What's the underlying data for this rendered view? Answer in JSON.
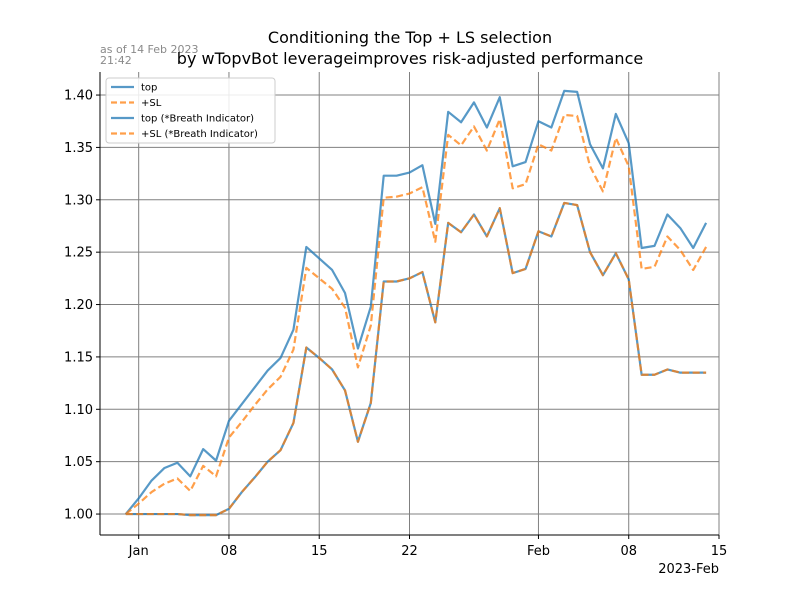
{
  "timestamp": {
    "line1": "as of 14 Feb 2023",
    "line2": "21:42"
  },
  "chart_data": {
    "type": "line",
    "title": "Conditioning the Top + LS selection",
    "subtitle": "by wTopvBot leverageimproves risk-adjusted performance",
    "xlabel": "",
    "ylabel": "",
    "x_offset_label": "2023-Feb",
    "xlim": [
      "2022-12-29",
      "2023-02-15"
    ],
    "ylim": [
      0.98,
      1.422
    ],
    "grid": true,
    "legend_position": "top-left",
    "x_ticks": [
      {
        "date": "2023-01-01",
        "label": "Jan"
      },
      {
        "date": "2023-01-08",
        "label": "08"
      },
      {
        "date": "2023-01-15",
        "label": "15"
      },
      {
        "date": "2023-01-22",
        "label": "22"
      },
      {
        "date": "2023-02-01",
        "label": "Feb"
      },
      {
        "date": "2023-02-08",
        "label": "08"
      },
      {
        "date": "2023-02-15",
        "label": "15"
      }
    ],
    "y_ticks": [
      {
        "value": 1.0,
        "label": "1.00"
      },
      {
        "value": 1.05,
        "label": "1.05"
      },
      {
        "value": 1.1,
        "label": "1.10"
      },
      {
        "value": 1.15,
        "label": "1.15"
      },
      {
        "value": 1.2,
        "label": "1.20"
      },
      {
        "value": 1.25,
        "label": "1.25"
      },
      {
        "value": 1.3,
        "label": "1.30"
      },
      {
        "value": 1.35,
        "label": "1.35"
      },
      {
        "value": 1.4,
        "label": "1.40"
      }
    ],
    "x": [
      "2022-12-31",
      "2023-01-01",
      "2023-01-02",
      "2023-01-03",
      "2023-01-04",
      "2023-01-05",
      "2023-01-06",
      "2023-01-07",
      "2023-01-08",
      "2023-01-09",
      "2023-01-10",
      "2023-01-11",
      "2023-01-12",
      "2023-01-13",
      "2023-01-14",
      "2023-01-15",
      "2023-01-16",
      "2023-01-17",
      "2023-01-18",
      "2023-01-19",
      "2023-01-20",
      "2023-01-21",
      "2023-01-22",
      "2023-01-23",
      "2023-01-24",
      "2023-01-25",
      "2023-01-26",
      "2023-01-27",
      "2023-01-28",
      "2023-01-29",
      "2023-01-30",
      "2023-01-31",
      "2023-02-01",
      "2023-02-02",
      "2023-02-03",
      "2023-02-04",
      "2023-02-05",
      "2023-02-06",
      "2023-02-07",
      "2023-02-08",
      "2023-02-09",
      "2023-02-10",
      "2023-02-11",
      "2023-02-12",
      "2023-02-13",
      "2023-02-14"
    ],
    "series": [
      {
        "name": "top",
        "color": "#1f77b4",
        "dash": "solid",
        "values": [
          1.0,
          1.015,
          1.032,
          1.044,
          1.049,
          1.036,
          1.062,
          1.051,
          1.089,
          1.105,
          1.121,
          1.137,
          1.149,
          1.176,
          1.255,
          1.244,
          1.233,
          1.211,
          1.158,
          1.198,
          1.323,
          1.323,
          1.326,
          1.333,
          1.277,
          1.384,
          1.374,
          1.393,
          1.369,
          1.398,
          1.332,
          1.336,
          1.375,
          1.369,
          1.404,
          1.403,
          1.353,
          1.33,
          1.382,
          1.354,
          1.254,
          1.256,
          1.286,
          1.273,
          1.254,
          1.278
        ]
      },
      {
        "name": "+SL",
        "color": "#ff7f0e",
        "dash": "dashed",
        "values": [
          1.0,
          1.01,
          1.021,
          1.029,
          1.034,
          1.022,
          1.046,
          1.036,
          1.073,
          1.088,
          1.104,
          1.119,
          1.131,
          1.157,
          1.235,
          1.225,
          1.215,
          1.197,
          1.14,
          1.18,
          1.302,
          1.303,
          1.306,
          1.312,
          1.26,
          1.362,
          1.352,
          1.37,
          1.347,
          1.377,
          1.311,
          1.315,
          1.353,
          1.347,
          1.381,
          1.38,
          1.332,
          1.308,
          1.359,
          1.332,
          1.234,
          1.236,
          1.265,
          1.252,
          1.233,
          1.255
        ]
      },
      {
        "name": "top (*Breath Indicator)",
        "color": "#1f77b4",
        "dash": "solid",
        "values": [
          1.0,
          1.0,
          1.0,
          1.0,
          1.0,
          0.999,
          0.999,
          0.999,
          1.005,
          1.021,
          1.035,
          1.05,
          1.061,
          1.087,
          1.159,
          1.149,
          1.138,
          1.118,
          1.069,
          1.106,
          1.222,
          1.222,
          1.225,
          1.231,
          1.183,
          1.278,
          1.269,
          1.286,
          1.265,
          1.292,
          1.23,
          1.234,
          1.27,
          1.265,
          1.297,
          1.295,
          1.25,
          1.228,
          1.249,
          1.224,
          1.133,
          1.133,
          1.138,
          1.135,
          1.135,
          1.135
        ]
      },
      {
        "name": "+SL (*Breath Indicator)",
        "color": "#ff7f0e",
        "dash": "dashed",
        "values": [
          1.0,
          1.0,
          1.0,
          1.0,
          1.0,
          0.999,
          0.999,
          0.999,
          1.005,
          1.021,
          1.035,
          1.05,
          1.061,
          1.087,
          1.159,
          1.149,
          1.138,
          1.118,
          1.069,
          1.106,
          1.222,
          1.222,
          1.225,
          1.231,
          1.183,
          1.278,
          1.269,
          1.286,
          1.265,
          1.292,
          1.23,
          1.234,
          1.27,
          1.265,
          1.297,
          1.295,
          1.25,
          1.228,
          1.249,
          1.224,
          1.133,
          1.133,
          1.138,
          1.135,
          1.135,
          1.135
        ]
      }
    ]
  }
}
